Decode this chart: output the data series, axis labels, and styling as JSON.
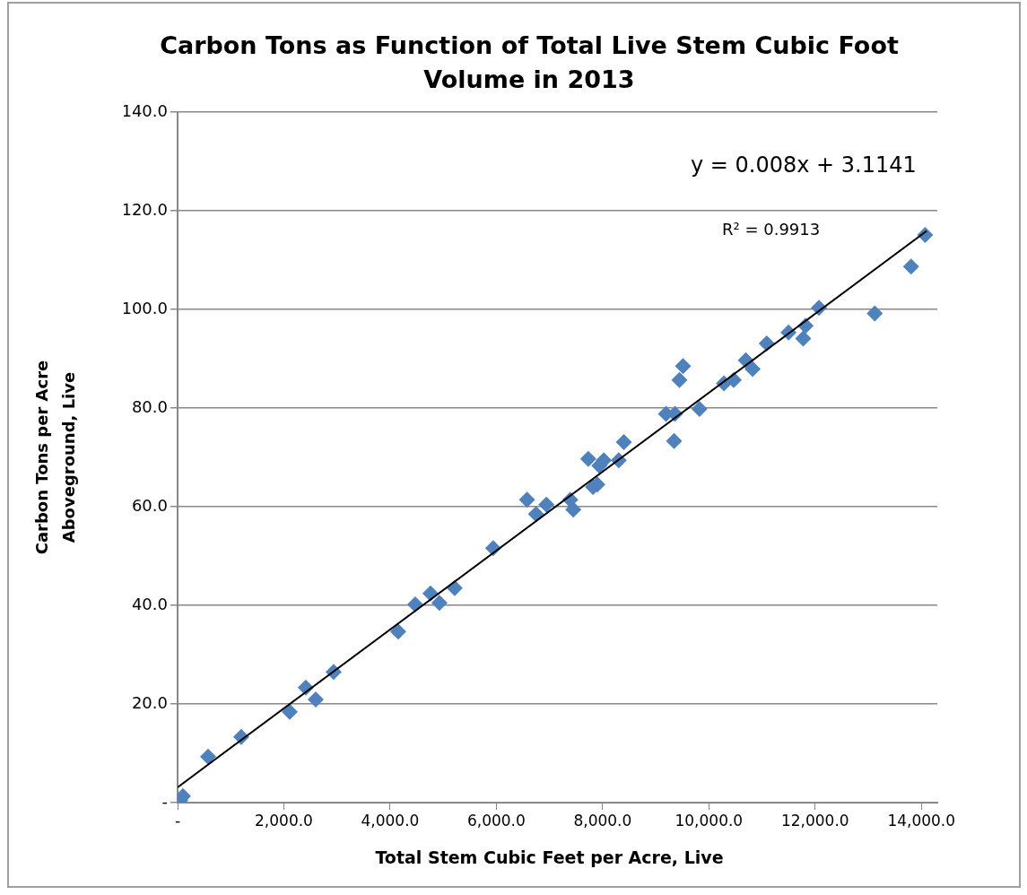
{
  "chart_data": {
    "type": "scatter",
    "title": "Carbon Tons as Function of Total Live Stem Cubic Foot Volume in 2013",
    "xlabel": "Total Stem Cubic Feet per Acre, Live",
    "ylabel": "Carbon Tons per Acre Aboveground, Live",
    "annotations": [
      "y = 0.008x + 3.1141",
      "R² = 0.9913"
    ],
    "xlim": [
      0,
      14300
    ],
    "xticks": [
      {
        "value": 0,
        "label": "-"
      },
      {
        "value": 2000,
        "label": "2,000.0"
      },
      {
        "value": 4000,
        "label": "4,000.0"
      },
      {
        "value": 6000,
        "label": "6,000.0"
      },
      {
        "value": 8000,
        "label": "8,000.0"
      },
      {
        "value": 10000,
        "label": "10,000.0"
      },
      {
        "value": 12000,
        "label": "12,000.0"
      },
      {
        "value": 14000,
        "label": "14,000.0"
      }
    ],
    "ylim": [
      0,
      140
    ],
    "yticks": [
      {
        "value": 0,
        "label": "-"
      },
      {
        "value": 20,
        "label": "20.0"
      },
      {
        "value": 40,
        "label": "40.0"
      },
      {
        "value": 60,
        "label": "60.0"
      },
      {
        "value": 80,
        "label": "80.0"
      },
      {
        "value": 100,
        "label": "100.0"
      },
      {
        "value": 120,
        "label": "120.0"
      },
      {
        "value": 140,
        "label": "140.0"
      }
    ],
    "grid": "y",
    "legend": false,
    "marker": "diamond",
    "series": [
      {
        "color": "#4f81bd",
        "x": [
          50,
          100,
          574,
          1198,
          2110,
          2413,
          2600,
          2937,
          4152,
          4473,
          4760,
          4928,
          5215,
          5941,
          6577,
          6747,
          6942,
          7392,
          7449,
          7730,
          7820,
          7900,
          7938,
          8022,
          8304,
          8400,
          9193,
          9345,
          9362,
          9446,
          9514,
          9823,
          10284,
          10469,
          10695,
          10823,
          11089,
          11499,
          11776,
          11820,
          12073,
          13122,
          13806,
          14071
        ],
        "values": [
          0.5,
          1.3,
          9.3,
          13.3,
          18.4,
          23.3,
          20.9,
          26.5,
          34.7,
          40.2,
          42.4,
          40.5,
          43.5,
          51.6,
          61.4,
          58.5,
          60.4,
          61.4,
          59.4,
          69.7,
          64.0,
          64.5,
          68.3,
          69.4,
          69.4,
          73.1,
          78.8,
          73.3,
          78.8,
          85.7,
          88.5,
          79.8,
          85.0,
          85.7,
          89.7,
          87.9,
          93.1,
          95.3,
          94.1,
          96.7,
          100.3,
          99.2,
          108.7,
          115.1
        ]
      },
      {
        "type": "line",
        "color": "#000000",
        "marker": "none",
        "x": [
          0,
          14100
        ],
        "values": [
          3.1,
          115.9
        ]
      }
    ]
  }
}
